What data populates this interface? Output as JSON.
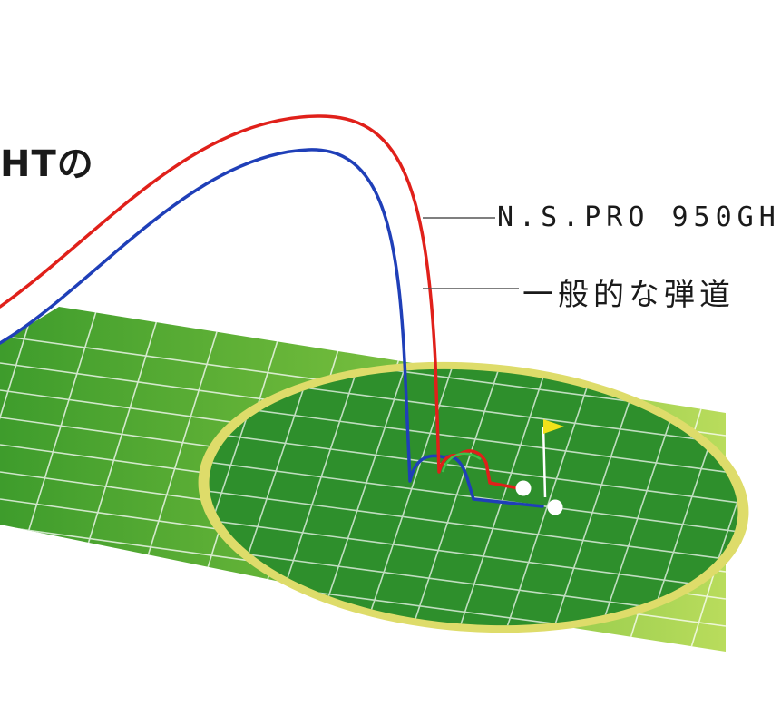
{
  "title_fragment": "HTの",
  "legend": {
    "red_label": "N.S.PRO 950GH",
    "blue_label": "一般的な弾道"
  },
  "colors": {
    "red_trajectory": "#e0201a",
    "blue_trajectory": "#1f3fb8",
    "fairway_light": "#9cd048",
    "fairway_dark": "#3a9a2a",
    "green_fill": "#2e8f2c",
    "green_fringe": "#e2e070",
    "grid_line": "#ffffff",
    "flag": "#f2e21a",
    "leader_line": "#555555"
  },
  "icons": [
    "flag-icon",
    "golf-ball-icon"
  ]
}
